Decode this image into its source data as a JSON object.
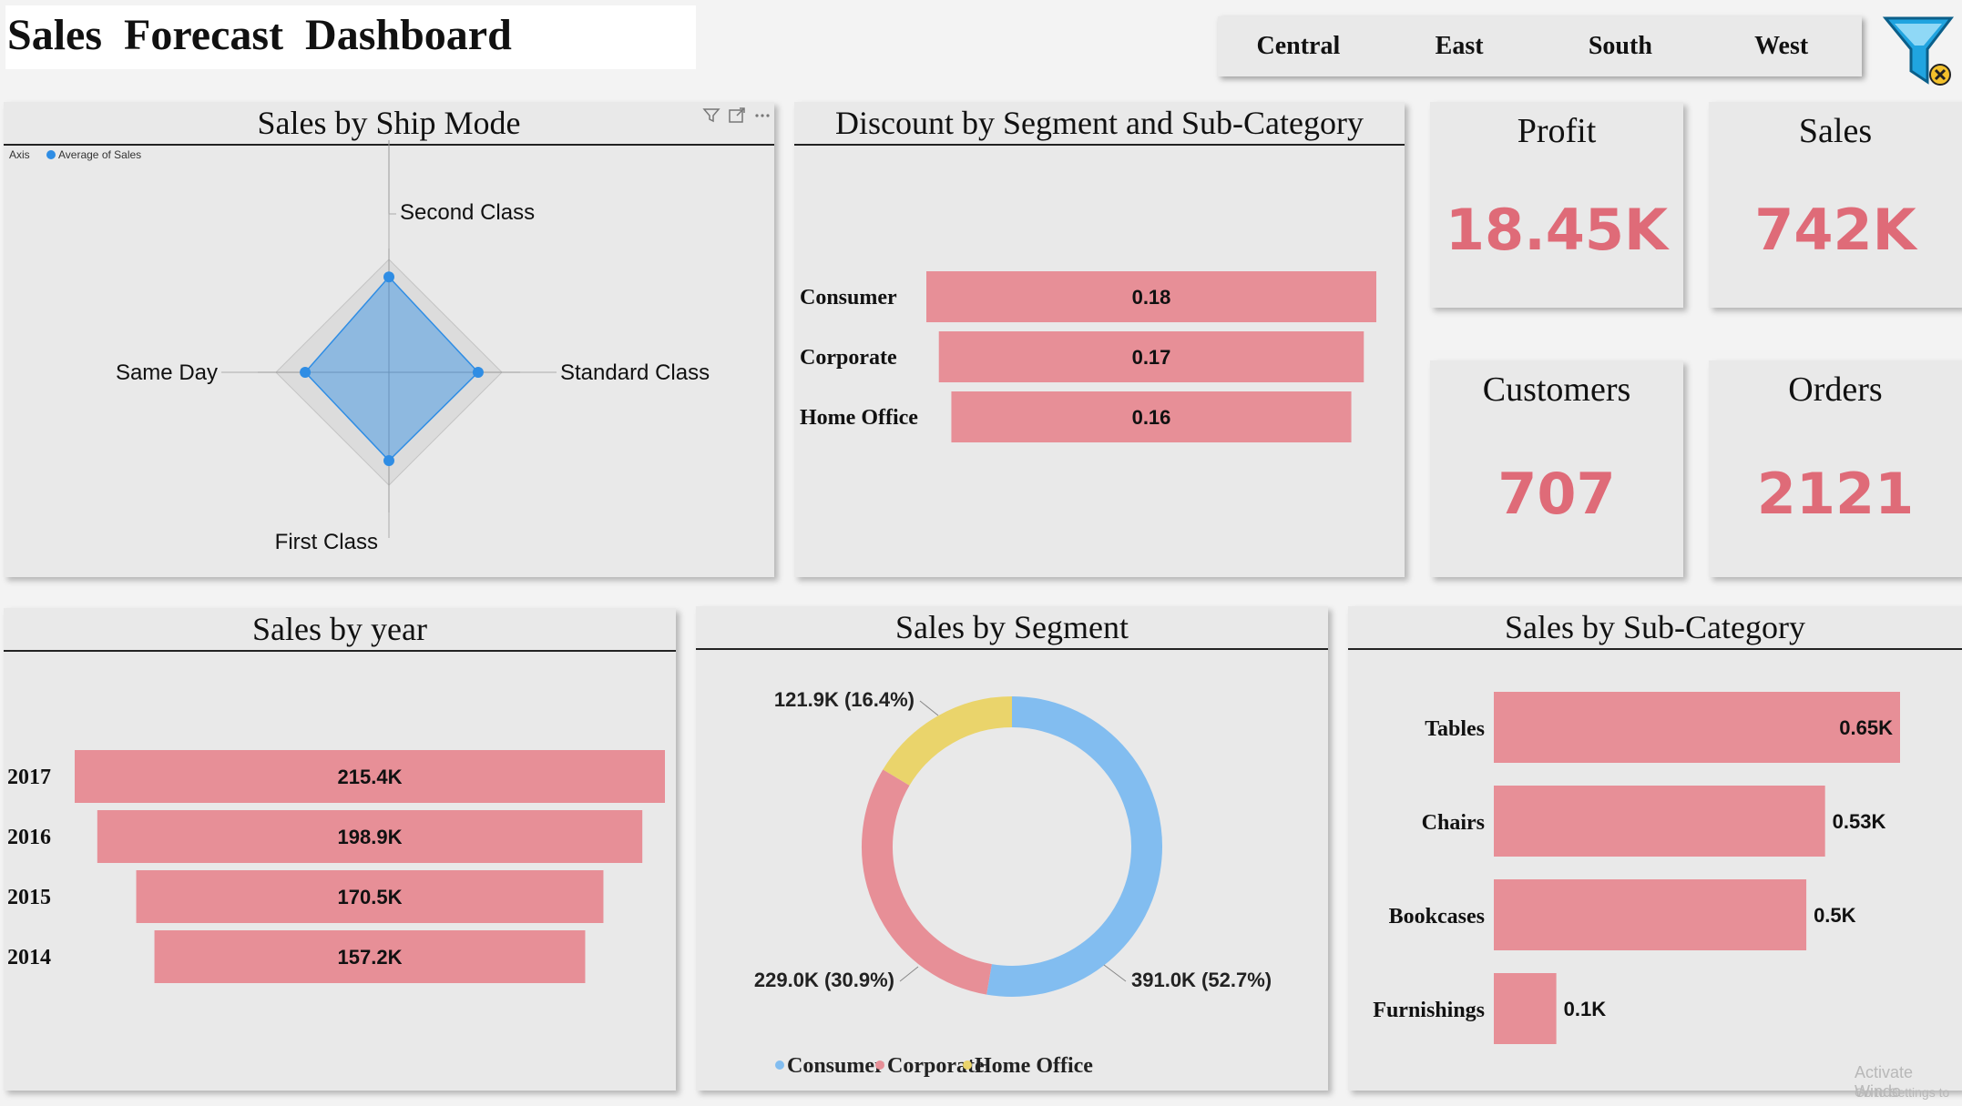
{
  "header": {
    "title": "Sales  Forecast  Dashboard"
  },
  "slicer": {
    "regions": [
      "Central",
      "East",
      "South",
      "West"
    ]
  },
  "kpis": {
    "profit": {
      "label": "Profit",
      "value": "18.45K"
    },
    "sales": {
      "label": "Sales",
      "value": "742K"
    },
    "customers": {
      "label": "Customers",
      "value": "707"
    },
    "orders": {
      "label": "Orders",
      "value": "2121"
    }
  },
  "watermark": {
    "line1": "Activate Windo",
    "line2": "Go to Settings to"
  },
  "colors": {
    "bar": "#e78f97",
    "consumer": "#82bdf0",
    "corporate": "#e78f97",
    "home_office": "#ead46b",
    "radar": "#2f8de4",
    "kpi": "#df6b78"
  },
  "chart_data": [
    {
      "id": "ship_mode",
      "type": "radar",
      "title": "Sales by Ship Mode",
      "legend": {
        "axis_label": "Axis",
        "series_name": "Average of Sales",
        "position": "top-left"
      },
      "categories": [
        "Second Class",
        "Standard Class",
        "First Class",
        "Same Day"
      ],
      "values": [
        245,
        229,
        227,
        215
      ],
      "rmax": 290,
      "grid_rings": 8
    },
    {
      "id": "discount_segment",
      "type": "bar",
      "orientation": "horizontal-centered",
      "title": "Discount by Segment and Sub-Category",
      "categories": [
        "Consumer",
        "Corporate",
        "Home Office"
      ],
      "values": [
        0.18,
        0.17,
        0.16
      ],
      "labels": [
        "0.18",
        "0.17",
        "0.16"
      ]
    },
    {
      "id": "sales_year",
      "type": "bar",
      "orientation": "horizontal-centered",
      "title": "Sales by year",
      "categories": [
        "2017",
        "2016",
        "2015",
        "2014"
      ],
      "values": [
        215.4,
        198.9,
        170.5,
        157.2
      ],
      "labels": [
        "215.4K",
        "198.9K",
        "170.5K",
        "157.2K"
      ]
    },
    {
      "id": "sales_segment",
      "type": "pie",
      "donut": true,
      "title": "Sales by Segment",
      "categories": [
        "Consumer",
        "Corporate",
        "Home Office"
      ],
      "values": [
        391.0,
        229.0,
        121.9
      ],
      "labels": [
        "391.0K (52.7%)",
        "229.0K (30.9%)",
        "121.9K (16.4%)"
      ],
      "legend_position": "bottom"
    },
    {
      "id": "sales_subcategory",
      "type": "bar",
      "orientation": "horizontal",
      "title": "Sales by Sub-Category",
      "categories": [
        "Tables",
        "Chairs",
        "Bookcases",
        "Furnishings"
      ],
      "values": [
        0.65,
        0.53,
        0.5,
        0.1
      ],
      "labels": [
        "0.65K",
        "0.53K",
        "0.5K",
        "0.1K"
      ],
      "xlim": [
        0,
        0.65
      ]
    }
  ]
}
